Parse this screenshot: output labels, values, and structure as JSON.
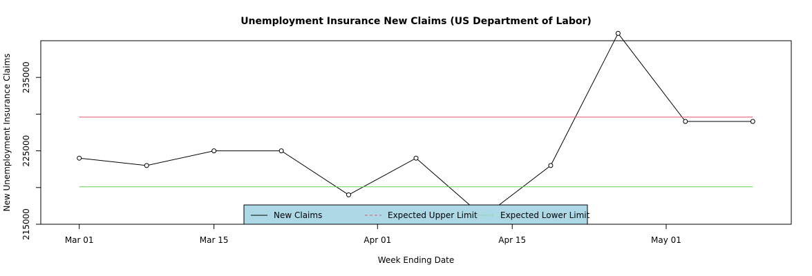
{
  "chart_data": {
    "type": "line",
    "title": "Unemployment Insurance New Claims (US Department of Labor)",
    "xlabel": "Week Ending Date",
    "ylabel": "New Unemployment Insurance Claims",
    "x": [
      "2023-03-01",
      "2023-03-08",
      "2023-03-15",
      "2023-03-22",
      "2023-03-29",
      "2023-04-05",
      "2023-04-12",
      "2023-04-19",
      "2023-04-26",
      "2023-05-03",
      "2023-05-10"
    ],
    "x_ticks": [
      {
        "date": "2023-03-01",
        "label": "Mar 01"
      },
      {
        "date": "2023-03-15",
        "label": "Mar 15"
      },
      {
        "date": "2023-04-01",
        "label": "Apr 01"
      },
      {
        "date": "2023-04-15",
        "label": "Apr 15"
      },
      {
        "date": "2023-05-01",
        "label": "May 01"
      }
    ],
    "y_ticks": [
      215000,
      225000,
      235000
    ],
    "ylim": [
      215000,
      240000
    ],
    "xlim": [
      "2023-02-25",
      "2023-05-14"
    ],
    "grid": false,
    "legend_position": "bottom-center",
    "legend_background": "#add8e6",
    "series": [
      {
        "name": "New Claims",
        "values": [
          224000,
          223000,
          225000,
          225000,
          219000,
          224000,
          216000,
          223000,
          241000,
          229000,
          229000
        ],
        "color": "#000000",
        "style": "solid",
        "markers": true
      },
      {
        "name": "Expected Upper Limit",
        "values": [
          229600,
          229600,
          229600,
          229600,
          229600,
          229600,
          229600,
          229600,
          229600,
          229600,
          229600
        ],
        "color": "#df536b",
        "style": "dashed",
        "markers": false
      },
      {
        "name": "Expected Lower Limit",
        "values": [
          220100,
          220100,
          220100,
          220100,
          220100,
          220100,
          220100,
          220100,
          220100,
          220100,
          220100
        ],
        "color": "#61d04f",
        "style": "dotted",
        "markers": false
      }
    ]
  }
}
